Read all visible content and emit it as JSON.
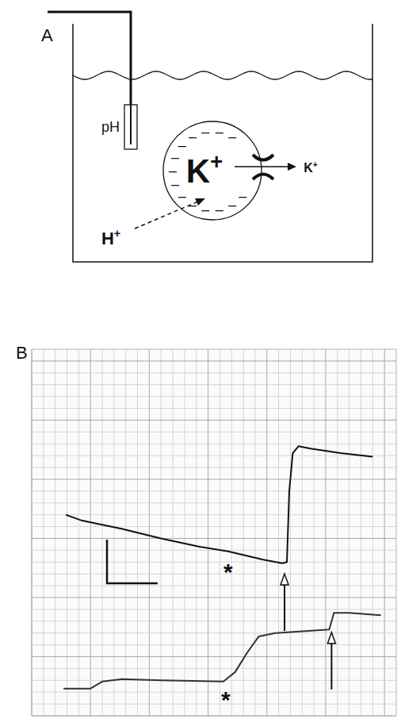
{
  "panel_a": {
    "label": "A",
    "probe_label": "pH",
    "cell_ion": {
      "symbol": "K",
      "charge": "+"
    },
    "efflux_ion": {
      "symbol": "K",
      "charge": "+"
    },
    "influx_ion": {
      "symbol": "H",
      "charge": "+"
    },
    "membrane_charge": "–"
  },
  "chart_data": {
    "type": "line",
    "label": "B",
    "xlim": [
      0,
      31
    ],
    "ylim": [
      0,
      31
    ],
    "xticks": [
      0,
      1,
      2,
      3,
      4,
      5,
      6,
      7,
      8,
      9,
      10,
      11,
      12,
      13,
      14,
      15,
      16,
      17,
      18,
      19,
      20,
      21,
      22,
      23,
      24,
      25,
      26,
      27,
      28,
      29,
      30,
      31
    ],
    "yticks": [
      0,
      1,
      2,
      3,
      4,
      5,
      6,
      7,
      8,
      9,
      10,
      11,
      12,
      13,
      14,
      15,
      16,
      17,
      18,
      19,
      20,
      21,
      22,
      23,
      24,
      25,
      26,
      27,
      28,
      29,
      30,
      31
    ],
    "grid": true,
    "tick_labels": false,
    "series": [
      {
        "color": "#111111",
        "x": [
          2.9,
          4.3,
          7.7,
          11.0,
          14.3,
          16.7,
          19.7,
          21.3,
          21.7,
          21.9,
          22.2,
          22.7,
          23.7,
          26.3,
          29.0
        ],
        "values": [
          17.0,
          16.5,
          15.8,
          15.0,
          14.3,
          13.9,
          13.2,
          12.9,
          13.0,
          19.0,
          22.2,
          22.8,
          22.6,
          22.2,
          21.9
        ]
      },
      {
        "color": "#333333",
        "x": [
          2.7,
          5.0,
          6.0,
          7.7,
          11.0,
          16.3,
          17.3,
          18.3,
          19.3,
          20.7,
          25.3,
          25.7,
          27.0,
          29.7
        ],
        "values": [
          2.3,
          2.3,
          2.9,
          3.1,
          3.0,
          2.9,
          3.7,
          5.3,
          6.7,
          7.0,
          7.3,
          8.7,
          8.7,
          8.5
        ]
      }
    ],
    "annotations": [
      {
        "series": 0,
        "x": 16.7,
        "marker": "asterisk",
        "text": "*"
      },
      {
        "series": 0,
        "x": 21.5,
        "marker": "arrow"
      },
      {
        "series": 1,
        "x": 16.5,
        "marker": "asterisk",
        "text": "*"
      },
      {
        "series": 1,
        "x": 25.5,
        "marker": "arrow"
      }
    ],
    "scale_bar": {
      "x": 4.3,
      "y": 3.7
    }
  }
}
